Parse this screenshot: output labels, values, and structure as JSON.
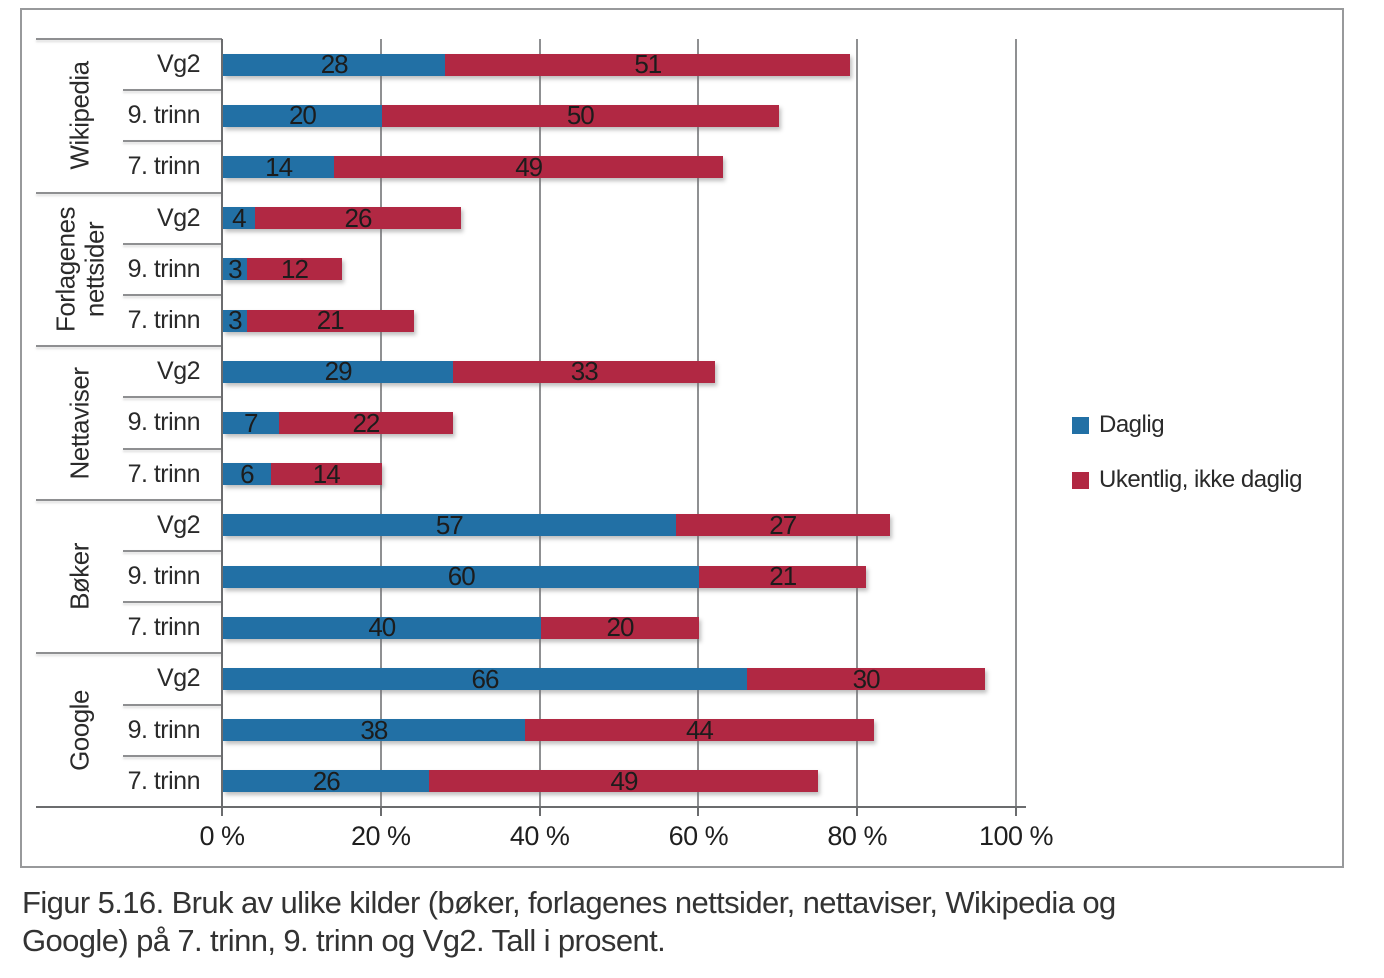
{
  "figure": {
    "caption": "Figur 5.16. Bruk av ulike kilder (bøker, forlagenes nettsider, nettaviser, Wikipedia og Google) på 7. trinn, 9. trinn og Vg2. Tall i prosent."
  },
  "chart_data": {
    "type": "bar",
    "orientation": "horizontal",
    "stacked": true,
    "unit": "percent",
    "grid": true,
    "legend_position": "right",
    "xlim": [
      0,
      100
    ],
    "x_tick_labels": [
      "0 %",
      "20 %",
      "40 %",
      "60 %",
      "80 %",
      "100 %"
    ],
    "series": [
      {
        "name": "Daglig",
        "color": "#2270a5"
      },
      {
        "name": "Ukentlig, ikke daglig",
        "color": "#b12843"
      }
    ],
    "groups": [
      {
        "category": "Wikipedia",
        "rows": [
          {
            "label": "Vg2",
            "values": [
              28,
              51
            ]
          },
          {
            "label": "9. trinn",
            "values": [
              20,
              50
            ]
          },
          {
            "label": "7. trinn",
            "values": [
              14,
              49
            ]
          }
        ]
      },
      {
        "category": "Forlagenes nettsider",
        "rows": [
          {
            "label": "Vg2",
            "values": [
              4,
              26
            ]
          },
          {
            "label": "9. trinn",
            "values": [
              3,
              12
            ]
          },
          {
            "label": "7. trinn",
            "values": [
              3,
              21
            ]
          }
        ]
      },
      {
        "category": "Nettaviser",
        "rows": [
          {
            "label": "Vg2",
            "values": [
              29,
              33
            ]
          },
          {
            "label": "9. trinn",
            "values": [
              7,
              22
            ]
          },
          {
            "label": "7. trinn",
            "values": [
              6,
              14
            ]
          }
        ]
      },
      {
        "category": "Bøker",
        "rows": [
          {
            "label": "Vg2",
            "values": [
              57,
              27
            ]
          },
          {
            "label": "9. trinn",
            "values": [
              60,
              21
            ]
          },
          {
            "label": "7. trinn",
            "values": [
              40,
              20
            ]
          }
        ]
      },
      {
        "category": "Google",
        "rows": [
          {
            "label": "Vg2",
            "values": [
              66,
              30
            ]
          },
          {
            "label": "9. trinn",
            "values": [
              38,
              44
            ]
          },
          {
            "label": "7. trinn",
            "values": [
              26,
              49
            ]
          }
        ]
      }
    ]
  }
}
